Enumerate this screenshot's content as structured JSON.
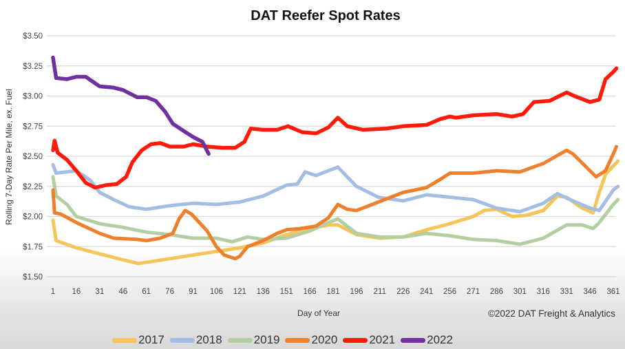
{
  "chart_data": {
    "type": "line",
    "title": "DAT Reefer Spot Rates",
    "xlabel": "Day of Year",
    "ylabel": "Rolling 7-Day Rate Per Mile, ex. Fuel",
    "credit": "©2022 DAT Freight & Analytics",
    "xlim": [
      1,
      365
    ],
    "ylim": [
      1.5,
      3.5
    ],
    "x_ticks": [
      "1",
      "16",
      "31",
      "46",
      "61",
      "76",
      "91",
      "106",
      "121",
      "136",
      "151",
      "166",
      "181",
      "196",
      "211",
      "226",
      "241",
      "256",
      "271",
      "286",
      "301",
      "316",
      "331",
      "346",
      "361"
    ],
    "y_ticks": [
      "$1.50",
      "$1.75",
      "$2.00",
      "$2.25",
      "$2.50",
      "$2.75",
      "$3.00",
      "$3.25",
      "$3.50"
    ],
    "grid": "horizontal",
    "legend": "bottom",
    "series": [
      {
        "name": "2017",
        "color": "#f5c55a",
        "points": [
          [
            1,
            1.97
          ],
          [
            3,
            1.8
          ],
          [
            16,
            1.74
          ],
          [
            31,
            1.69
          ],
          [
            46,
            1.64
          ],
          [
            56,
            1.61
          ],
          [
            76,
            1.65
          ],
          [
            91,
            1.68
          ],
          [
            106,
            1.71
          ],
          [
            121,
            1.74
          ],
          [
            136,
            1.78
          ],
          [
            151,
            1.85
          ],
          [
            166,
            1.9
          ],
          [
            178,
            1.93
          ],
          [
            184,
            1.93
          ],
          [
            196,
            1.85
          ],
          [
            211,
            1.82
          ],
          [
            226,
            1.83
          ],
          [
            241,
            1.89
          ],
          [
            256,
            1.94
          ],
          [
            271,
            2.0
          ],
          [
            278,
            2.05
          ],
          [
            286,
            2.06
          ],
          [
            296,
            2.0
          ],
          [
            305,
            2.01
          ],
          [
            316,
            2.05
          ],
          [
            325,
            2.17
          ],
          [
            331,
            2.16
          ],
          [
            341,
            2.07
          ],
          [
            348,
            2.03
          ],
          [
            352,
            2.2
          ],
          [
            356,
            2.35
          ],
          [
            364,
            2.46
          ]
        ]
      },
      {
        "name": "2018",
        "color": "#a3bde3",
        "points": [
          [
            1,
            2.43
          ],
          [
            3,
            2.36
          ],
          [
            16,
            2.38
          ],
          [
            25,
            2.3
          ],
          [
            31,
            2.2
          ],
          [
            40,
            2.14
          ],
          [
            50,
            2.08
          ],
          [
            61,
            2.06
          ],
          [
            76,
            2.09
          ],
          [
            91,
            2.11
          ],
          [
            106,
            2.1
          ],
          [
            121,
            2.12
          ],
          [
            136,
            2.17
          ],
          [
            151,
            2.26
          ],
          [
            158,
            2.27
          ],
          [
            163,
            2.37
          ],
          [
            170,
            2.34
          ],
          [
            184,
            2.41
          ],
          [
            196,
            2.25
          ],
          [
            210,
            2.16
          ],
          [
            226,
            2.13
          ],
          [
            241,
            2.18
          ],
          [
            256,
            2.16
          ],
          [
            271,
            2.14
          ],
          [
            286,
            2.07
          ],
          [
            301,
            2.04
          ],
          [
            316,
            2.11
          ],
          [
            325,
            2.19
          ],
          [
            335,
            2.13
          ],
          [
            346,
            2.07
          ],
          [
            352,
            2.05
          ],
          [
            361,
            2.22
          ],
          [
            364,
            2.25
          ]
        ]
      },
      {
        "name": "2019",
        "color": "#b3cea0",
        "points": [
          [
            1,
            2.33
          ],
          [
            3,
            2.17
          ],
          [
            10,
            2.1
          ],
          [
            16,
            2.0
          ],
          [
            31,
            1.94
          ],
          [
            46,
            1.91
          ],
          [
            61,
            1.87
          ],
          [
            76,
            1.85
          ],
          [
            91,
            1.82
          ],
          [
            106,
            1.82
          ],
          [
            116,
            1.79
          ],
          [
            126,
            1.83
          ],
          [
            136,
            1.81
          ],
          [
            151,
            1.82
          ],
          [
            166,
            1.88
          ],
          [
            178,
            1.95
          ],
          [
            184,
            1.98
          ],
          [
            196,
            1.86
          ],
          [
            211,
            1.83
          ],
          [
            226,
            1.83
          ],
          [
            241,
            1.86
          ],
          [
            256,
            1.84
          ],
          [
            271,
            1.81
          ],
          [
            286,
            1.8
          ],
          [
            301,
            1.77
          ],
          [
            316,
            1.82
          ],
          [
            331,
            1.93
          ],
          [
            341,
            1.93
          ],
          [
            348,
            1.9
          ],
          [
            352,
            1.95
          ],
          [
            361,
            2.1
          ],
          [
            364,
            2.14
          ]
        ]
      },
      {
        "name": "2020",
        "color": "#ee7f2d",
        "points": [
          [
            1,
            2.22
          ],
          [
            2,
            2.03
          ],
          [
            6,
            2.02
          ],
          [
            16,
            1.95
          ],
          [
            31,
            1.86
          ],
          [
            40,
            1.82
          ],
          [
            55,
            1.81
          ],
          [
            61,
            1.8
          ],
          [
            70,
            1.82
          ],
          [
            78,
            1.86
          ],
          [
            82,
            1.98
          ],
          [
            86,
            2.05
          ],
          [
            90,
            2.02
          ],
          [
            100,
            1.88
          ],
          [
            106,
            1.75
          ],
          [
            111,
            1.68
          ],
          [
            118,
            1.65
          ],
          [
            121,
            1.67
          ],
          [
            126,
            1.75
          ],
          [
            136,
            1.8
          ],
          [
            145,
            1.86
          ],
          [
            151,
            1.89
          ],
          [
            160,
            1.9
          ],
          [
            170,
            1.92
          ],
          [
            178,
            1.99
          ],
          [
            184,
            2.1
          ],
          [
            190,
            2.06
          ],
          [
            196,
            2.05
          ],
          [
            210,
            2.12
          ],
          [
            226,
            2.2
          ],
          [
            241,
            2.24
          ],
          [
            250,
            2.31
          ],
          [
            256,
            2.36
          ],
          [
            271,
            2.36
          ],
          [
            286,
            2.38
          ],
          [
            301,
            2.37
          ],
          [
            316,
            2.44
          ],
          [
            331,
            2.55
          ],
          [
            335,
            2.52
          ],
          [
            346,
            2.38
          ],
          [
            350,
            2.33
          ],
          [
            356,
            2.38
          ],
          [
            361,
            2.52
          ],
          [
            363,
            2.58
          ]
        ]
      },
      {
        "name": "2021",
        "color": "#ff1a0a",
        "points": [
          [
            1,
            2.55
          ],
          [
            2,
            2.63
          ],
          [
            4,
            2.53
          ],
          [
            10,
            2.47
          ],
          [
            16,
            2.38
          ],
          [
            22,
            2.28
          ],
          [
            28,
            2.24
          ],
          [
            35,
            2.26
          ],
          [
            42,
            2.27
          ],
          [
            48,
            2.33
          ],
          [
            52,
            2.45
          ],
          [
            58,
            2.55
          ],
          [
            64,
            2.6
          ],
          [
            70,
            2.61
          ],
          [
            76,
            2.58
          ],
          [
            85,
            2.58
          ],
          [
            91,
            2.6
          ],
          [
            100,
            2.58
          ],
          [
            110,
            2.57
          ],
          [
            118,
            2.57
          ],
          [
            124,
            2.62
          ],
          [
            128,
            2.73
          ],
          [
            136,
            2.72
          ],
          [
            145,
            2.72
          ],
          [
            152,
            2.75
          ],
          [
            161,
            2.7
          ],
          [
            170,
            2.69
          ],
          [
            178,
            2.74
          ],
          [
            184,
            2.82
          ],
          [
            190,
            2.75
          ],
          [
            200,
            2.72
          ],
          [
            215,
            2.73
          ],
          [
            226,
            2.75
          ],
          [
            241,
            2.76
          ],
          [
            250,
            2.81
          ],
          [
            256,
            2.83
          ],
          [
            260,
            2.82
          ],
          [
            271,
            2.84
          ],
          [
            286,
            2.85
          ],
          [
            296,
            2.83
          ],
          [
            303,
            2.85
          ],
          [
            310,
            2.95
          ],
          [
            320,
            2.96
          ],
          [
            331,
            3.03
          ],
          [
            336,
            3.0
          ],
          [
            346,
            2.95
          ],
          [
            352,
            2.97
          ],
          [
            356,
            3.14
          ],
          [
            361,
            3.2
          ],
          [
            363,
            3.23
          ]
        ]
      },
      {
        "name": "2022",
        "color": "#7030a0",
        "points": [
          [
            1,
            3.32
          ],
          [
            3,
            3.15
          ],
          [
            10,
            3.14
          ],
          [
            16,
            3.16
          ],
          [
            22,
            3.16
          ],
          [
            31,
            3.08
          ],
          [
            40,
            3.07
          ],
          [
            46,
            3.05
          ],
          [
            55,
            2.99
          ],
          [
            61,
            2.99
          ],
          [
            67,
            2.96
          ],
          [
            73,
            2.87
          ],
          [
            78,
            2.77
          ],
          [
            85,
            2.71
          ],
          [
            91,
            2.66
          ],
          [
            97,
            2.62
          ],
          [
            101,
            2.52
          ]
        ]
      }
    ]
  }
}
